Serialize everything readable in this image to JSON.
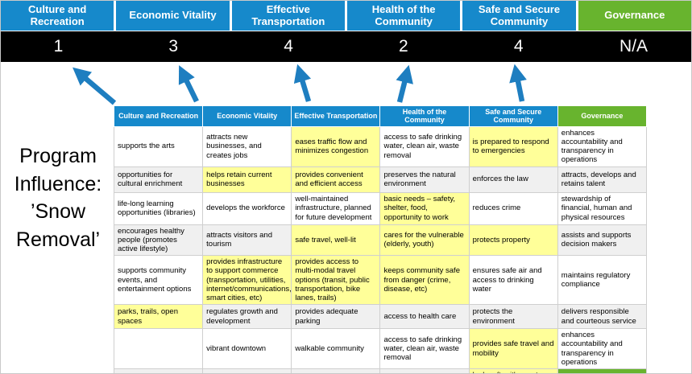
{
  "colors": {
    "header_blue": "#1689cb",
    "header_green": "#68b42e",
    "score_band": "#000000",
    "highlight_yellow": "#ffff99",
    "stripe_gray": "#f0f0f0",
    "arrow_blue": "#1e7ec0"
  },
  "title": {
    "text": "Program Influence: ’Snow Removal’"
  },
  "scoreboard": {
    "columns": [
      {
        "label": "Culture and Recreation",
        "score": "1",
        "style": "blue"
      },
      {
        "label": "Economic Vitality",
        "score": "3",
        "style": "blue"
      },
      {
        "label": "Effective Transportation",
        "score": "4",
        "style": "blue"
      },
      {
        "label": "Health of the Community",
        "score": "2",
        "style": "blue"
      },
      {
        "label": "Safe and Secure Community",
        "score": "4",
        "style": "blue"
      },
      {
        "label": "Governance",
        "score": "N/A",
        "style": "green"
      }
    ]
  },
  "matrix": {
    "headers": [
      {
        "label": "Culture and Recreation",
        "style": "blue"
      },
      {
        "label": "Economic Vitality",
        "style": "blue"
      },
      {
        "label": "Effective Transportation",
        "style": "blue"
      },
      {
        "label": "Health of the Community",
        "style": "blue"
      },
      {
        "label": "Safe and Secure Community",
        "style": "blue"
      },
      {
        "label": "Governance",
        "style": "green"
      }
    ],
    "rows": [
      {
        "cells": [
          {
            "text": "supports the arts"
          },
          {
            "text": "attracts new businesses, and creates jobs"
          },
          {
            "text": "eases traffic flow and minimizes congestion",
            "hl": true
          },
          {
            "text": "access to safe drinking water, clean air, waste removal"
          },
          {
            "text": "is prepared to respond to emergencies",
            "hl": true
          },
          {
            "text": "enhances accountability and transparency in operations"
          }
        ]
      },
      {
        "cells": [
          {
            "text": "opportunities for cultural enrichment"
          },
          {
            "text": "helps retain current businesses",
            "hl": true
          },
          {
            "text": "provides convenient and efficient access",
            "hl": true
          },
          {
            "text": "preserves the natural environment"
          },
          {
            "text": "enforces the law"
          },
          {
            "text": "attracts, develops and retains talent"
          }
        ]
      },
      {
        "cells": [
          {
            "text": "life-long learning opportunities (libraries)"
          },
          {
            "text": "develops the workforce"
          },
          {
            "text": "well-maintained infrastructure, planned for future development"
          },
          {
            "text": "basic needs – safety, shelter, food, opportunity to work",
            "hl": true
          },
          {
            "text": "reduces crime"
          },
          {
            "text": "stewardship of financial, human and physical resources"
          }
        ]
      },
      {
        "cells": [
          {
            "text": "encourages healthy people (promotes active lifestyle)"
          },
          {
            "text": "attracts visitors and tourism"
          },
          {
            "text": "safe travel, well-lit",
            "hl": true
          },
          {
            "text": "cares for the vulnerable (elderly, youth)",
            "hl": true
          },
          {
            "text": "protects property",
            "hl": true
          },
          {
            "text": "assists and supports decision makers"
          }
        ]
      },
      {
        "cells": [
          {
            "text": "supports community events, and entertainment options"
          },
          {
            "text": "provides infrastructure to support commerce (transportation, utilities, internet/communications, smart cities, etc)",
            "hl": true
          },
          {
            "text": "provides access to multi-modal travel options (transit, public transportation, bike lanes, trails)",
            "hl": true
          },
          {
            "text": "keeps community safe from danger (crime, disease, etc)",
            "hl": true
          },
          {
            "text": "ensures safe air and access to drinking water"
          },
          {
            "text": "maintains regulatory compliance"
          }
        ]
      },
      {
        "cells": [
          {
            "text": "parks, trails, open spaces",
            "hl": true
          },
          {
            "text": "regulates growth and development"
          },
          {
            "text": "provides adequate parking"
          },
          {
            "text": "access to health care"
          },
          {
            "text": "protects the environment"
          },
          {
            "text": "delivers responsible and courteous service"
          }
        ]
      },
      {
        "cells": [
          {
            "text": ""
          },
          {
            "text": "vibrant downtown"
          },
          {
            "text": "walkable community"
          },
          {
            "text": "access to safe drinking water, clean air, waste removal"
          },
          {
            "text": "provides safe travel and mobility",
            "hl": true
          },
          {
            "text": "enhances accountability and transparency in operations"
          }
        ]
      },
      {
        "cells": [
          {
            "text": ""
          },
          {
            "text": ""
          },
          {
            "text": ""
          },
          {
            "text": ""
          },
          {
            "text": "looks after it's most vulnerable",
            "hl": true
          },
          {
            "text": "",
            "green": true
          }
        ]
      }
    ]
  }
}
